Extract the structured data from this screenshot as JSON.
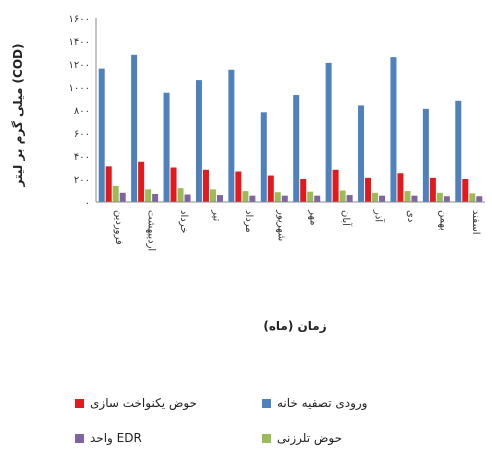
{
  "chart_data": {
    "type": "bar",
    "categories": [
      "فروردین",
      "اردیبهشت",
      "خرداد",
      "تیر",
      "مرداد",
      "شهریور",
      "مهر",
      "آبان",
      "آذر",
      "دی",
      "بهمن",
      "اسفند"
    ],
    "series": [
      {
        "name": "ورودی تصفیه خانه",
        "color": "#4F81BD",
        "values": [
          1160,
          1280,
          950,
          1060,
          1150,
          780,
          930,
          1210,
          840,
          1260,
          810,
          880
        ]
      },
      {
        "name": "حوض یکنواخت سازی",
        "color": "#E31A1C",
        "values": [
          310,
          350,
          300,
          280,
          265,
          230,
          200,
          280,
          210,
          250,
          210,
          200
        ]
      },
      {
        "name": "حوض تلرزنی",
        "color": "#9BBB59",
        "values": [
          140,
          110,
          120,
          110,
          95,
          85,
          90,
          100,
          80,
          95,
          80,
          75
        ]
      },
      {
        "name": "واحد EDR",
        "color": "#8064A2",
        "values": [
          80,
          70,
          65,
          60,
          55,
          55,
          55,
          60,
          55,
          55,
          50,
          50
        ]
      }
    ],
    "yticks": [
      "۰",
      "۲۰۰",
      "۴۰۰",
      "۶۰۰",
      "۸۰۰",
      "۱۰۰۰",
      "۱۲۰۰",
      "۱۴۰۰",
      "۱۶۰۰"
    ],
    "ylim": [
      0,
      1600
    ],
    "ylabel": "میلی گرم بر لیتر (COD)",
    "xlabel": "زمان (ماه)",
    "legend_position": "bottom",
    "grid": false
  }
}
